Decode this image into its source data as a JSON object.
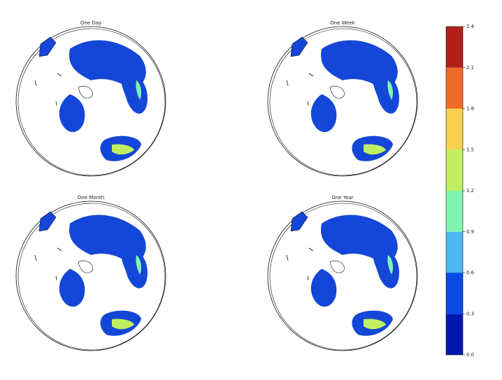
{
  "panels": [
    {
      "title": "One Day"
    },
    {
      "title": "One Week"
    },
    {
      "title": "One Month"
    },
    {
      "title": "One Year"
    }
  ],
  "colorbar": {
    "ylim": [
      0,
      2.4
    ],
    "ticks": [
      {
        "value": 0,
        "label": "0.0"
      },
      {
        "value": 0.3,
        "label": "0.3"
      },
      {
        "value": 0.6,
        "label": "0.6"
      },
      {
        "value": 0.9,
        "label": "0.9"
      },
      {
        "value": 1.2,
        "label": "1.2"
      },
      {
        "value": 1.5,
        "label": "1.5"
      },
      {
        "value": 1.8,
        "label": "1.8"
      },
      {
        "value": 2.1,
        "label": "2.1"
      },
      {
        "value": 2.4,
        "label": "2.4"
      }
    ],
    "colors": [
      "#0018b0",
      "#0a4ae8",
      "#4cb8f0",
      "#80f5b0",
      "#c0f060",
      "#f8d050",
      "#f06a28",
      "#b02018"
    ]
  }
}
